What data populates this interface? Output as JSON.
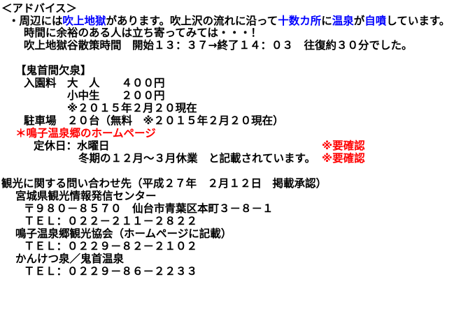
{
  "lines": [
    {
      "segments": [
        {
          "text": "＜アドバイス＞"
        }
      ]
    },
    {
      "segments": [
        {
          "text": "・周辺には"
        },
        {
          "text": "吹上地獄",
          "color": "#0000ff"
        },
        {
          "text": "があります。吹上沢の流れに沿って"
        },
        {
          "text": "十数カ所",
          "color": "#0000ff"
        },
        {
          "text": "に"
        },
        {
          "text": "温泉",
          "color": "#0000ff"
        },
        {
          "text": "が"
        },
        {
          "text": "自噴",
          "color": "#0000ff"
        },
        {
          "text": "しています。"
        }
      ]
    },
    {
      "segments": [
        {
          "text": "時間に余裕のある人は立ち寄ってみては・・・！"
        }
      ]
    },
    {
      "segments": [
        {
          "text": "吹上地獄谷散策時間　開始１３：３７→終了１４：０３　往復約３０分でした。"
        }
      ]
    },
    {
      "segments": [
        {
          "text": "【鬼首間欠泉】"
        }
      ]
    },
    {
      "segments": [
        {
          "text": "入園料　大　人　　４００円"
        }
      ]
    },
    {
      "segments": [
        {
          "text": "小中生　　２００円"
        }
      ]
    },
    {
      "segments": [
        {
          "text": "※２０１５年２月２０現在"
        }
      ]
    },
    {
      "segments": [
        {
          "text": "駐車場　２０台（無料　※２０１５年２月２０現在）"
        }
      ]
    },
    {
      "segments": [
        {
          "text": "＊鳴子温泉郷のホームページ",
          "color": "#ff0000"
        }
      ]
    },
    {
      "segments": [
        {
          "text": "定休日：水曜日"
        },
        {
          "text": "※要確認",
          "color": "#ff0000"
        }
      ]
    },
    {
      "segments": [
        {
          "text": "冬期の１２月～３月休業　と記載されています。"
        },
        {
          "text": "※要確認",
          "color": "#ff0000"
        }
      ]
    },
    {
      "segments": [
        {
          "text": "観光に関する問い合わせ先（平成２７年　２月１２日　掲載承認）"
        }
      ]
    },
    {
      "segments": [
        {
          "text": "宮城県観光情報発信センター"
        }
      ]
    },
    {
      "segments": [
        {
          "text": "〒９８０－８５７０　仙台市青葉区本町３－８－１"
        }
      ]
    },
    {
      "segments": [
        {
          "text": "ＴＥＬ：０２２－２１１－２８２２"
        }
      ]
    },
    {
      "segments": [
        {
          "text": "鳴子温泉郷観光協会（ホームページに記載）"
        }
      ]
    },
    {
      "segments": [
        {
          "text": "ＴＥＬ：０２２９－８２－２１０２"
        }
      ]
    },
    {
      "segments": [
        {
          "text": "かんけつ泉／鬼首温泉"
        }
      ]
    },
    {
      "segments": [
        {
          "text": "ＴＥＬ：０２２９－８６－２２３３"
        }
      ]
    }
  ]
}
